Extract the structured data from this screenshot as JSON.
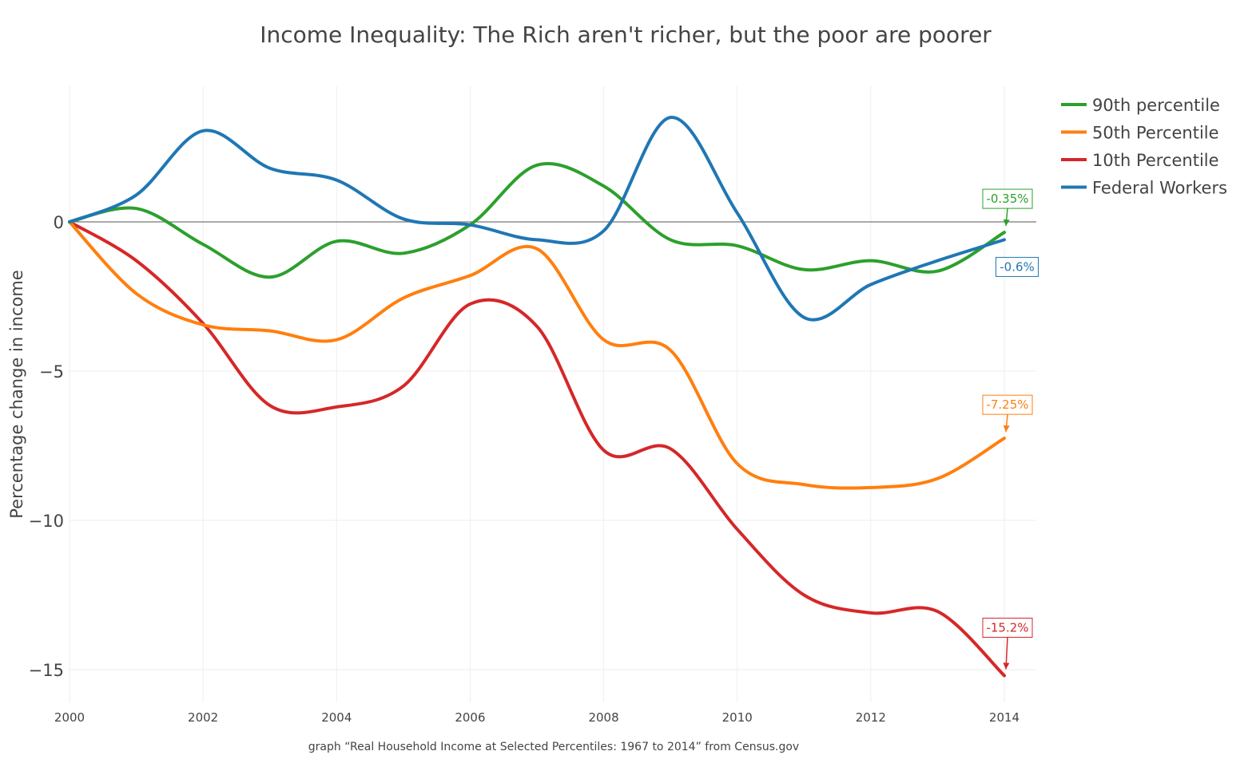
{
  "chart_data": {
    "type": "line",
    "title": "Income Inequality: The Rich aren't richer, but the poor are poorer",
    "xlabel": "",
    "ylabel": "Percentage change in income",
    "source_note": "graph “Real Household Income at Selected Percentiles: 1967 to 2014” from Census.gov",
    "x": [
      2000,
      2001,
      2002,
      2003,
      2004,
      2005,
      2006,
      2007,
      2008,
      2009,
      2010,
      2011,
      2012,
      2013,
      2014
    ],
    "xlim": [
      2000,
      2014.5
    ],
    "ylim": [
      -16.2,
      3.7
    ],
    "x_ticks": [
      "2000",
      "2002",
      "2004",
      "2006",
      "2008",
      "2010",
      "2012",
      "2014"
    ],
    "y_ticks": [
      {
        "value": 0,
        "label": "0"
      },
      {
        "value": -5,
        "label": "−5"
      },
      {
        "value": -10,
        "label": "−10"
      },
      {
        "value": -15,
        "label": "−15"
      }
    ],
    "grid": true,
    "zero_line": true,
    "legend_position": "top-right",
    "series": [
      {
        "name": "90th percentile",
        "color": "#2ca02c",
        "values": [
          0,
          0.45,
          -0.75,
          -1.85,
          -0.65,
          -1.05,
          -0.1,
          1.9,
          1.2,
          -0.6,
          -0.8,
          -1.6,
          -1.3,
          -1.65,
          -0.35
        ]
      },
      {
        "name": "50th Percentile",
        "color": "#ff7f0e",
        "values": [
          0,
          -2.4,
          -3.45,
          -3.65,
          -3.95,
          -2.55,
          -1.8,
          -0.9,
          -3.95,
          -4.3,
          -8.1,
          -8.8,
          -8.9,
          -8.6,
          -7.25
        ]
      },
      {
        "name": "10th Percentile",
        "color": "#d62728",
        "values": [
          0,
          -1.3,
          -3.4,
          -6.15,
          -6.2,
          -5.5,
          -2.75,
          -3.5,
          -7.65,
          -7.6,
          -10.3,
          -12.5,
          -13.1,
          -13.05,
          -15.2
        ]
      },
      {
        "name": "Federal Workers",
        "color": "#1f77b4",
        "values": [
          0,
          0.9,
          3.05,
          1.8,
          1.4,
          0.1,
          -0.1,
          -0.6,
          -0.3,
          3.5,
          0.3,
          -3.2,
          -2.1,
          -1.3,
          -0.6
        ]
      }
    ],
    "annotations": [
      {
        "series": "90th percentile",
        "x": 2014,
        "y": -0.35,
        "text": "-0.35%",
        "color": "#2ca02c",
        "placement": "above"
      },
      {
        "series": "Federal Workers",
        "x": 2014,
        "y": -0.6,
        "text": "-0.6%",
        "color": "#1f77b4",
        "placement": "below"
      },
      {
        "series": "50th Percentile",
        "x": 2014,
        "y": -7.25,
        "text": "-7.25%",
        "color": "#ff7f0e",
        "placement": "above"
      },
      {
        "series": "10th Percentile",
        "x": 2014,
        "y": -15.2,
        "text": "-15.2%",
        "color": "#d62728",
        "placement": "above"
      }
    ]
  }
}
